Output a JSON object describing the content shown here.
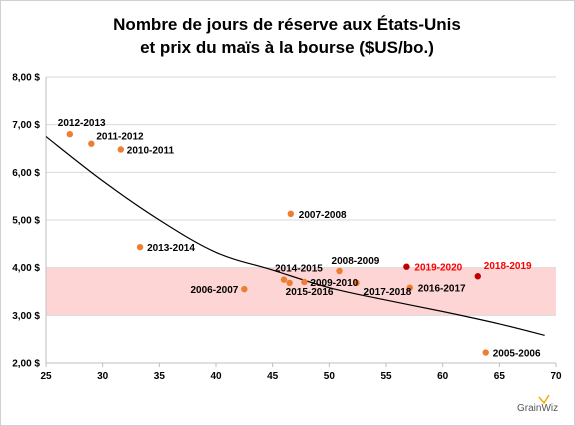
{
  "chart_data": {
    "type": "scatter",
    "title_lines": [
      "Nombre de jours de réserve aux États-Unis",
      "et prix du maïs à la bourse ($US/bo.)"
    ],
    "xlim": [
      25,
      70
    ],
    "ylim": [
      2.0,
      8.0
    ],
    "x_ticks": [
      25,
      30,
      35,
      40,
      45,
      50,
      55,
      60,
      65,
      70
    ],
    "y_ticks": [
      {
        "value": 2.0,
        "label": "2,00 $"
      },
      {
        "value": 3.0,
        "label": "3,00 $"
      },
      {
        "value": 4.0,
        "label": "4,00 $"
      },
      {
        "value": 5.0,
        "label": "5,00 $"
      },
      {
        "value": 6.0,
        "label": "6,00 $"
      },
      {
        "value": 7.0,
        "label": "7,00 $"
      },
      {
        "value": 8.0,
        "label": "8,00 $"
      }
    ],
    "band": {
      "ymin": 3.0,
      "ymax": 4.0,
      "color": "#fdd5d5"
    },
    "trendline": {
      "x": [
        25,
        30,
        35,
        40,
        45,
        50,
        55,
        60,
        65,
        69
      ],
      "y": [
        6.75,
        5.82,
        5.0,
        4.32,
        3.95,
        3.58,
        3.32,
        3.08,
        2.82,
        2.58
      ]
    },
    "points": [
      {
        "label": "2012-2013",
        "x": 27.1,
        "y": 6.8,
        "color": "#ed7d31",
        "label_color": "#000000"
      },
      {
        "label": "2011-2012",
        "x": 29.0,
        "y": 6.6,
        "color": "#ed7d31",
        "label_color": "#000000"
      },
      {
        "label": "2010-2011",
        "x": 31.6,
        "y": 6.48,
        "color": "#ed7d31",
        "label_color": "#000000"
      },
      {
        "label": "2013-2014",
        "x": 33.3,
        "y": 4.43,
        "color": "#ed7d31",
        "label_color": "#000000"
      },
      {
        "label": "2007-2008",
        "x": 46.6,
        "y": 5.13,
        "color": "#ed7d31",
        "label_color": "#000000"
      },
      {
        "label": "2006-2007",
        "x": 42.5,
        "y": 3.55,
        "color": "#ed7d31",
        "label_color": "#000000"
      },
      {
        "label": "2014-2015",
        "x": 46.0,
        "y": 3.75,
        "color": "#ed7d31",
        "label_color": "#000000"
      },
      {
        "label": "2015-2016",
        "x": 46.5,
        "y": 3.68,
        "color": "#ed7d31",
        "label_color": "#000000"
      },
      {
        "label": "2009-2010",
        "x": 47.8,
        "y": 3.7,
        "color": "#ed7d31",
        "label_color": "#000000"
      },
      {
        "label": "2008-2009",
        "x": 50.9,
        "y": 3.93,
        "color": "#ed7d31",
        "label_color": "#000000"
      },
      {
        "label": "2017-2018",
        "x": 52.4,
        "y": 3.68,
        "color": "#ed7d31",
        "label_color": "#000000"
      },
      {
        "label": "2019-2020",
        "x": 56.8,
        "y": 4.02,
        "color": "#c00000",
        "label_color": "#ff0000"
      },
      {
        "label": "2016-2017",
        "x": 57.1,
        "y": 3.58,
        "color": "#ed7d31",
        "label_color": "#000000"
      },
      {
        "label": "2018-2019",
        "x": 63.1,
        "y": 3.82,
        "color": "#c00000",
        "label_color": "#ff0000"
      },
      {
        "label": "2005-2006",
        "x": 63.8,
        "y": 2.22,
        "color": "#ed7d31",
        "label_color": "#000000"
      }
    ]
  },
  "branding": {
    "logo_text": "GrainWiz"
  }
}
